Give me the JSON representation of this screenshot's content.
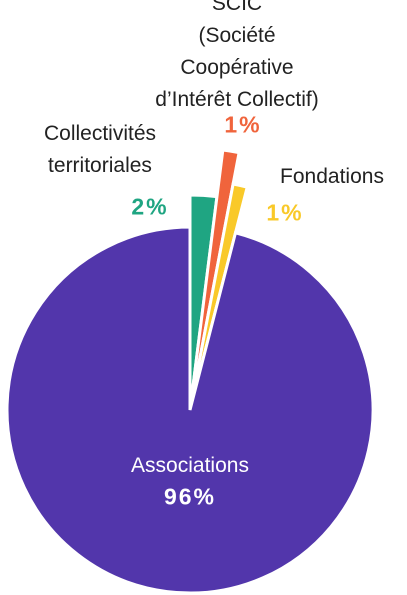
{
  "chart_data": {
    "type": "pie",
    "categories": [
      "Collectivités\nterritoriales",
      "SCIC\n(Société Coopérative\nd’Intérêt Collectif)",
      "Fondations",
      "Associations"
    ],
    "values": [
      2,
      1,
      1,
      96
    ],
    "value_labels": [
      "2%",
      "1%",
      "1%",
      "96%"
    ],
    "colors": [
      "#1fa582",
      "#f0643c",
      "#f9c929",
      "#5236ab"
    ]
  }
}
